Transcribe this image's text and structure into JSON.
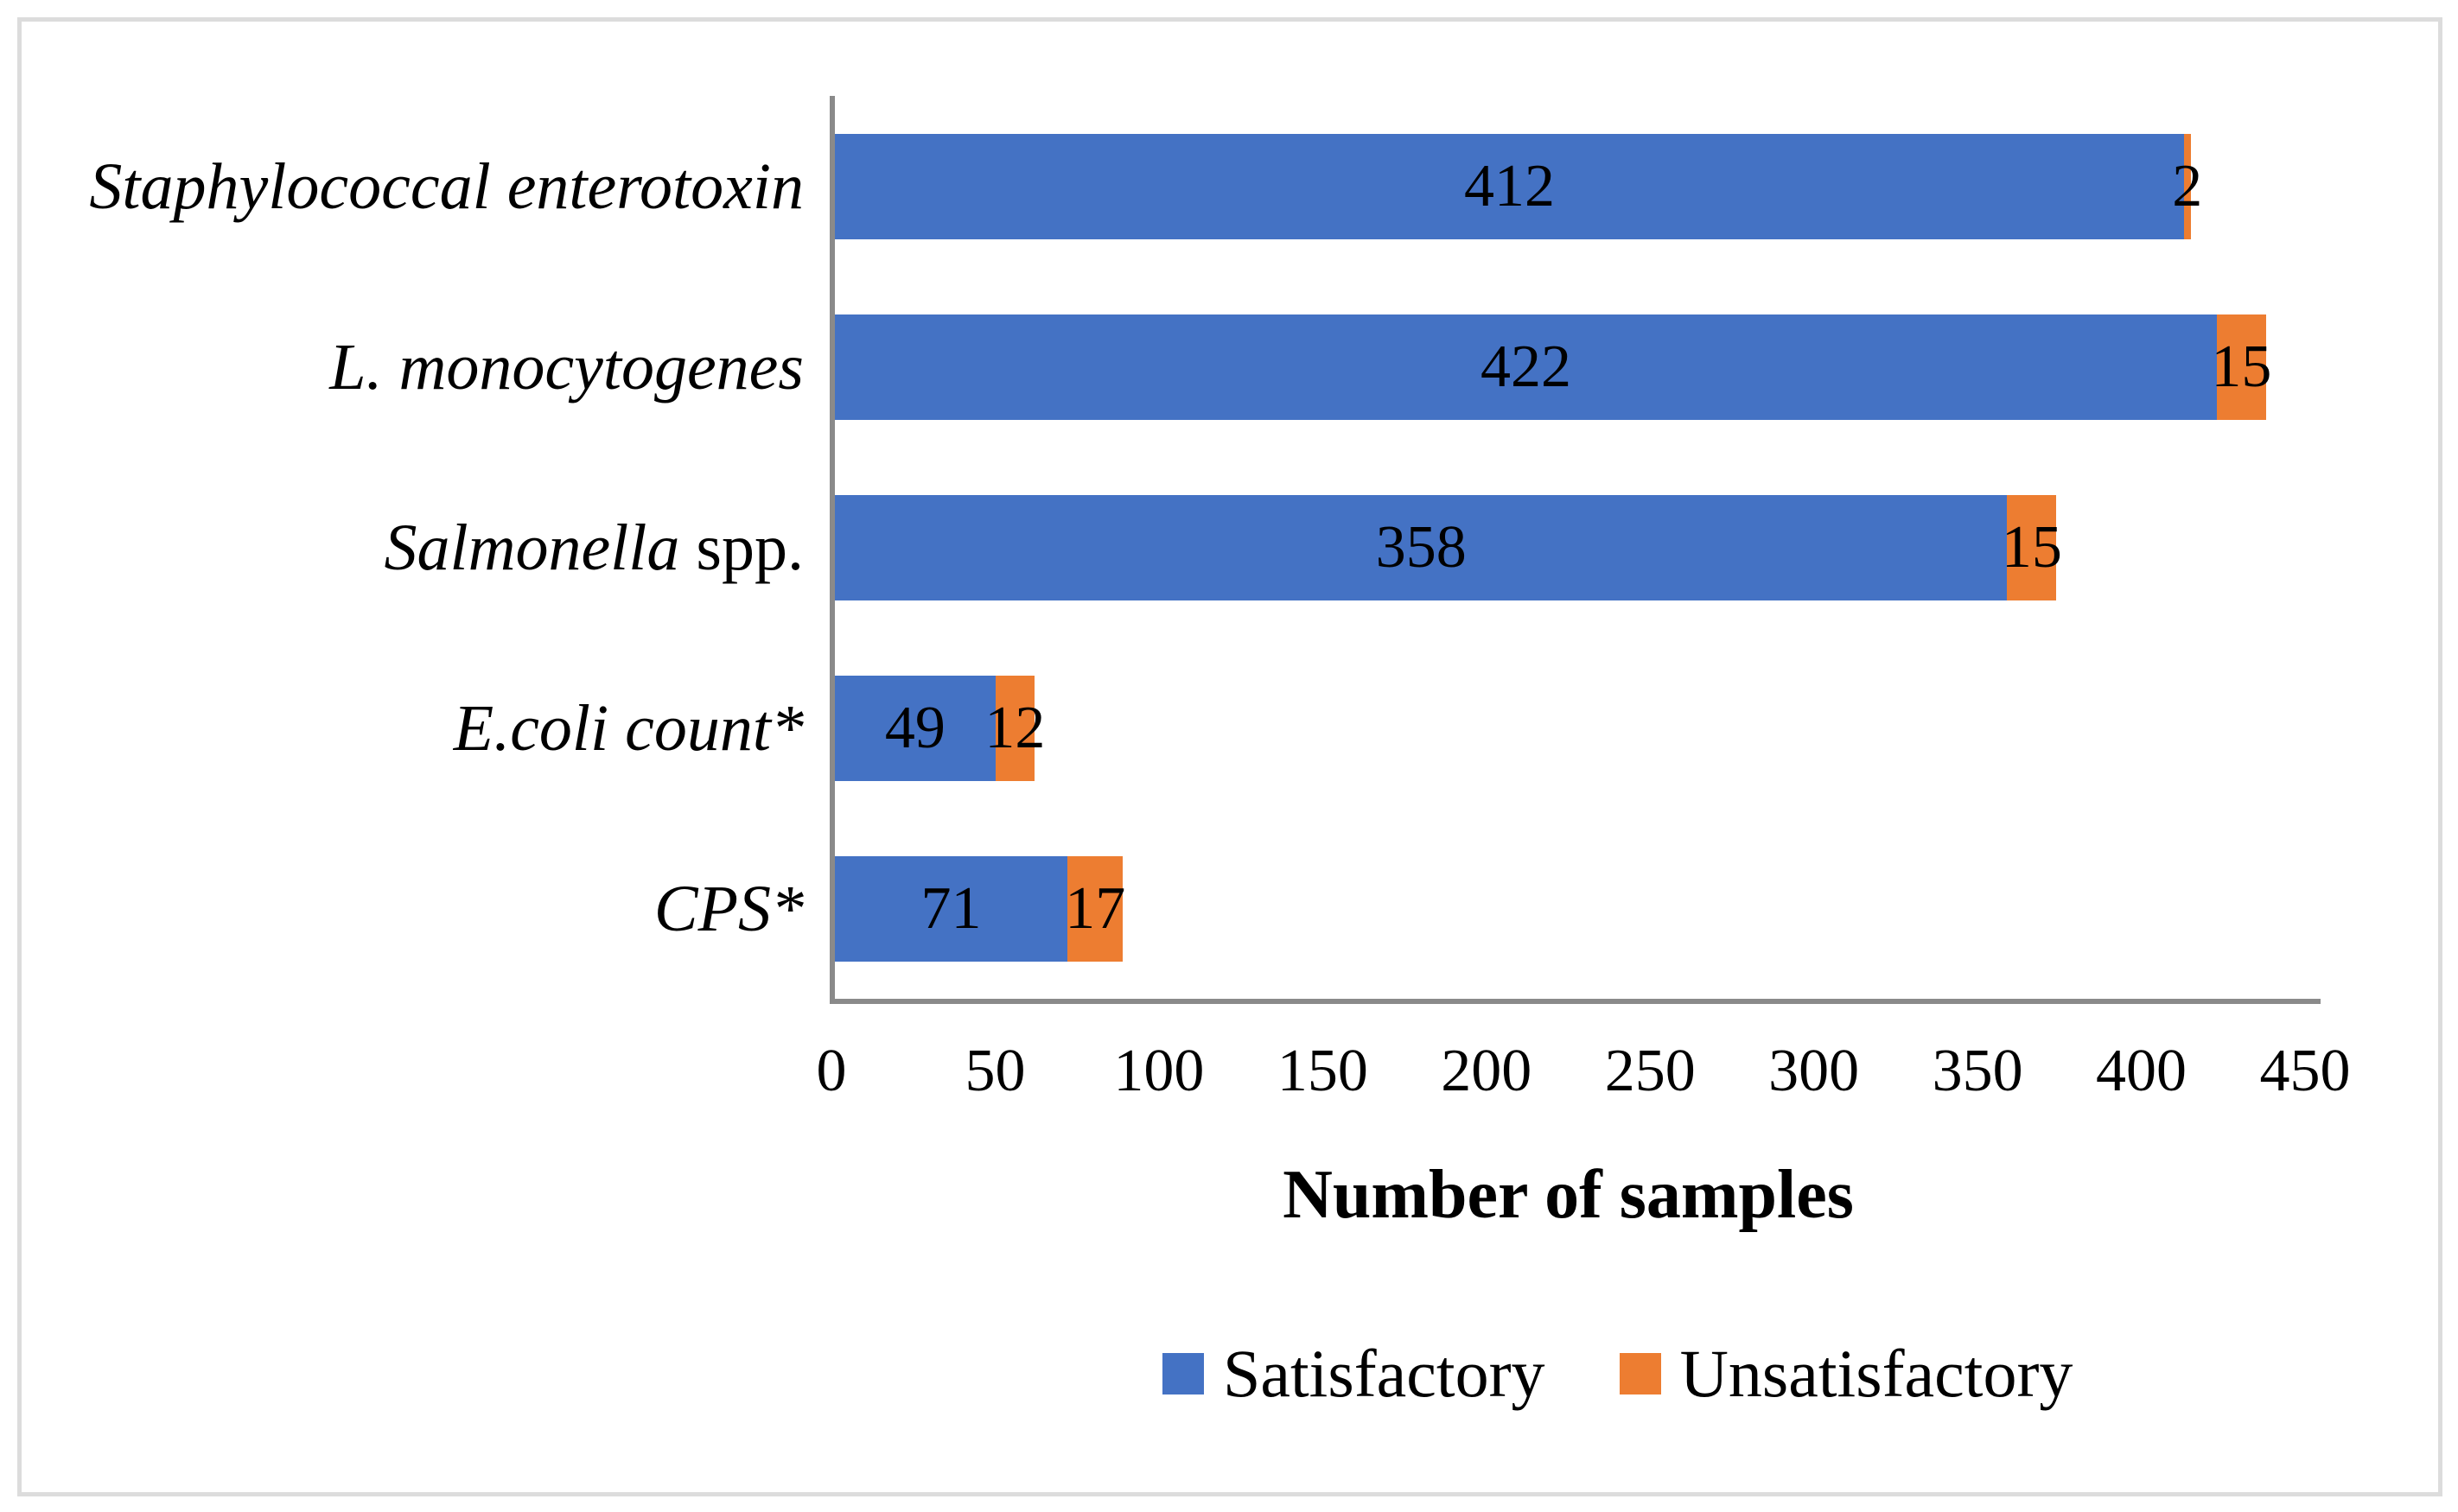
{
  "figure": {
    "background_color": "#ffffff",
    "border_color": "#dcdcdc",
    "axis_line_color": "#8a8a8a",
    "text_color": "#000000"
  },
  "chart_data": {
    "type": "bar",
    "orientation": "horizontal",
    "stacked": true,
    "title": "",
    "xlabel": "Number of samples",
    "ylabel": "",
    "xlim": [
      0,
      450
    ],
    "xticks": [
      0,
      50,
      100,
      150,
      200,
      250,
      300,
      350,
      400,
      450
    ],
    "grid": false,
    "legend_position": "bottom",
    "categories": [
      {
        "italic": "Staphylococcal enterotoxin",
        "roman": ""
      },
      {
        "italic": "L. monocytogenes",
        "roman": ""
      },
      {
        "italic": "Salmonella",
        "roman": " spp."
      },
      {
        "italic": "E.coli count*",
        "roman": ""
      },
      {
        "italic": "CPS*",
        "roman": ""
      }
    ],
    "series": [
      {
        "name": "Satisfactory",
        "color": "#4472C4",
        "values": [
          412,
          422,
          358,
          49,
          71
        ]
      },
      {
        "name": "Unsatisfactory",
        "color": "#ED7D31",
        "values": [
          2,
          15,
          15,
          12,
          17
        ]
      }
    ],
    "bar_value_labels_shown": true
  }
}
